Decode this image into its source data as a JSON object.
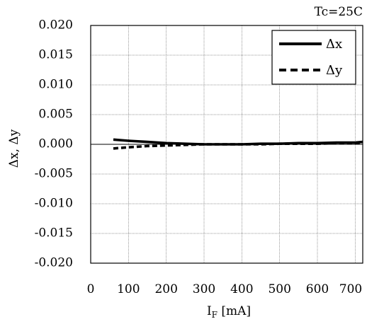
{
  "chart_data": {
    "type": "line",
    "title": "",
    "annotation": "Tc=25C",
    "xlabel_main": "I",
    "xlabel_sub": "F",
    "xlabel_unit": " [mA]",
    "ylabel": "Δx, Δy",
    "xlim": [
      0,
      720
    ],
    "ylim": [
      -0.02,
      0.02
    ],
    "x_ticks": [
      0,
      100,
      200,
      300,
      400,
      500,
      600,
      700
    ],
    "x_tick_labels": [
      "0",
      "100",
      "200",
      "300",
      "400",
      "500",
      "600",
      "700"
    ],
    "y_ticks": [
      0.02,
      0.015,
      0.01,
      0.005,
      0,
      -0.005,
      -0.01,
      -0.015,
      -0.02
    ],
    "y_tick_labels": [
      "0.020",
      "0.015",
      "0.010",
      "0.005",
      "0.000",
      "-0.005",
      "-0.010",
      "-0.015",
      "-0.020"
    ],
    "grid": true,
    "legend_position": "top-right",
    "series": [
      {
        "name": "Δx",
        "style": "solid",
        "color": "#000000",
        "x": [
          60,
          100,
          150,
          200,
          250,
          300,
          350,
          400,
          450,
          500,
          550,
          600,
          650,
          700,
          720
        ],
        "y": [
          0.0008,
          0.0006,
          0.0004,
          0.0002,
          0.0001,
          0.0,
          0.0,
          0.0,
          0.0001,
          0.0001,
          0.0002,
          0.0002,
          0.0003,
          0.0003,
          0.0004
        ]
      },
      {
        "name": "Δy",
        "style": "dashed",
        "color": "#000000",
        "x": [
          60,
          100,
          150,
          200,
          250,
          300,
          350,
          400,
          450,
          500,
          550,
          600,
          650,
          700,
          720
        ],
        "y": [
          -0.0007,
          -0.0005,
          -0.0003,
          -0.0002,
          -0.0001,
          0.0,
          0.0,
          0.0,
          0.0,
          0.0001,
          0.0001,
          0.0001,
          0.0002,
          0.0002,
          0.0002
        ]
      }
    ]
  }
}
